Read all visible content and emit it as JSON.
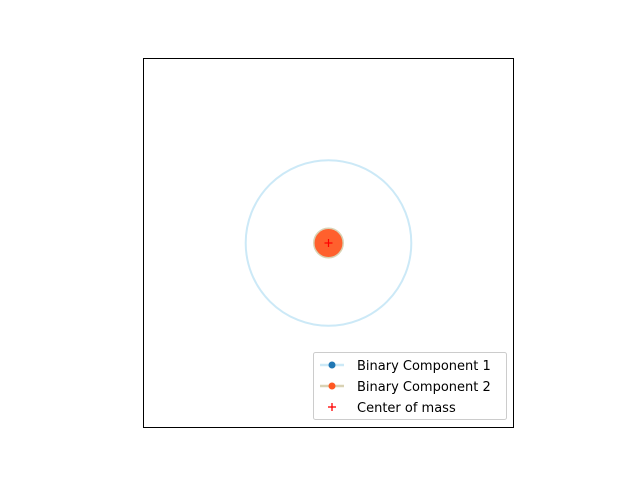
{
  "chart_data": {
    "type": "scatter",
    "title": "",
    "xlabel": "",
    "ylabel": "",
    "xticks": [],
    "yticks": [],
    "xlim": [
      -1,
      1
    ],
    "ylim": [
      -1,
      1
    ],
    "grid": false,
    "aspect": "equal",
    "legend_position": "lower-right",
    "series": [
      {
        "name": "Binary Component 1",
        "kind": "orbit-with-body",
        "orbit_center": [
          0,
          0
        ],
        "orbit_radius": 0.45,
        "body_position": [
          0,
          0
        ],
        "orbit_color": "#cce9f7",
        "marker_color": "#1f77b4"
      },
      {
        "name": "Binary Component 2",
        "kind": "orbit-with-body",
        "orbit_center": [
          0,
          0
        ],
        "orbit_radius": 0.0,
        "body_position": [
          0,
          0
        ],
        "body_radius": 0.08,
        "orbit_color": "#d9d2b4",
        "marker_color": "#ff5722"
      },
      {
        "name": "Center of mass",
        "kind": "marker",
        "position": [
          0,
          0
        ],
        "marker": "+",
        "marker_color": "#ff0000"
      }
    ]
  }
}
